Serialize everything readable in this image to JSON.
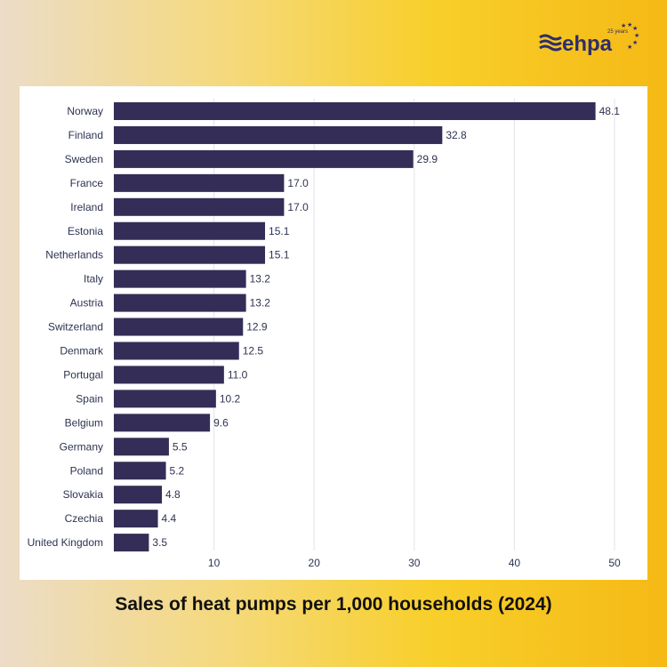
{
  "chart_data": {
    "type": "bar",
    "orientation": "horizontal",
    "title": "Sales of heat pumps per 1,000 households (2024)",
    "categories": [
      "Norway",
      "Finland",
      "Sweden",
      "France",
      "Ireland",
      "Estonia",
      "Netherlands",
      "Italy",
      "Austria",
      "Switzerland",
      "Denmark",
      "Portugal",
      "Spain",
      "Belgium",
      "Germany",
      "Poland",
      "Slovakia",
      "Czechia",
      "United Kingdom"
    ],
    "values": [
      48.1,
      32.8,
      29.9,
      17.0,
      17.0,
      15.1,
      15.1,
      13.2,
      13.2,
      12.9,
      12.5,
      11.0,
      10.2,
      9.6,
      5.5,
      5.2,
      4.8,
      4.4,
      3.5
    ],
    "xticks": [
      10,
      20,
      30,
      40,
      50
    ],
    "xlim": [
      0,
      51.5
    ],
    "grid": true,
    "bar_color": "#332d57"
  },
  "logo": {
    "text": "ehpa",
    "badge": "25 years",
    "color": "#2e2d6b"
  }
}
